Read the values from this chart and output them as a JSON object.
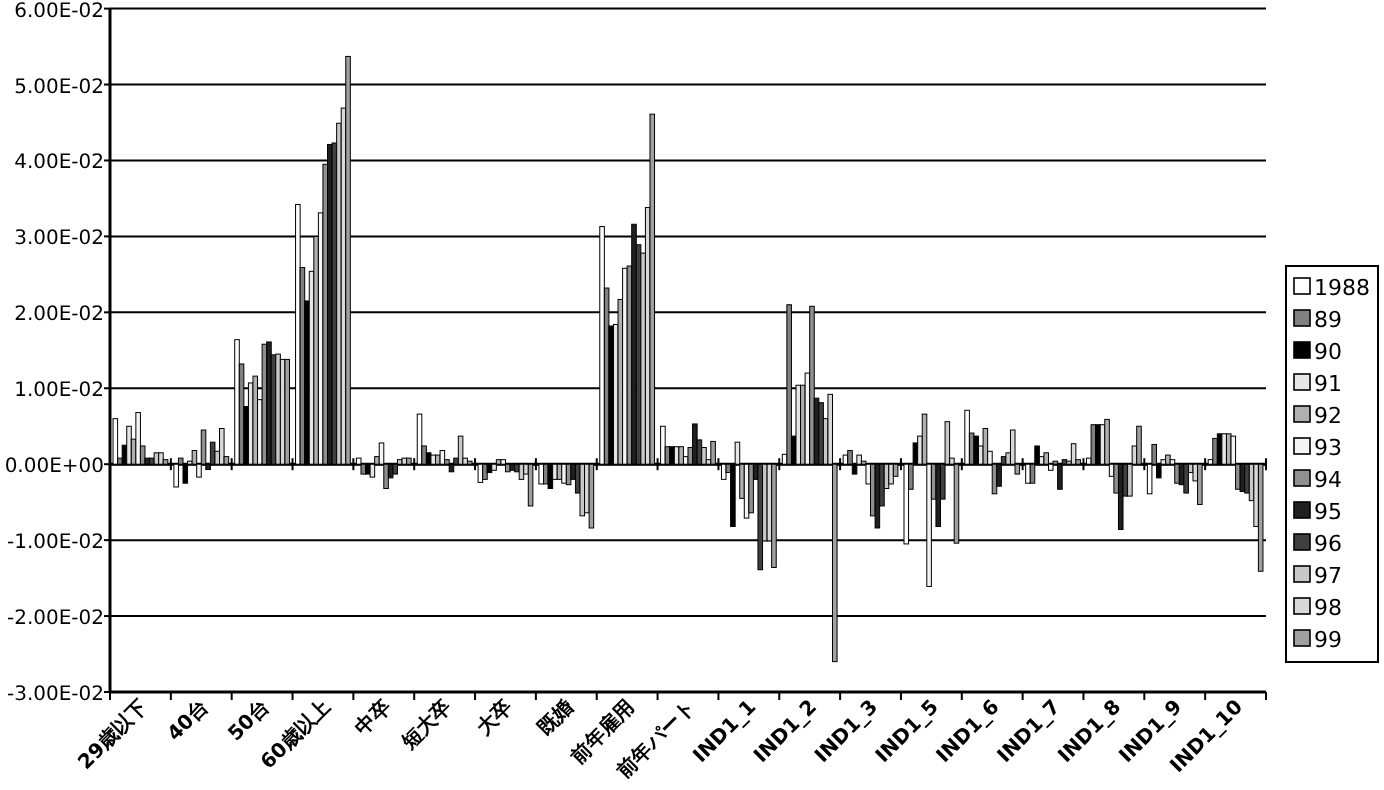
{
  "chart_data": {
    "type": "bar",
    "categories": [
      "29歳以下",
      "40台",
      "50台",
      "60歳以上",
      "中卒",
      "短大卒",
      "大卒",
      "既婚",
      "前年雇用",
      "前年パート",
      "IND1_1",
      "IND1_2",
      "IND1_3",
      "IND1_5",
      "IND1_6",
      "IND1_7",
      "IND1_8",
      "IND1_9",
      "IND1_10"
    ],
    "series": [
      {
        "name": "1988",
        "color": "#ffffff",
        "values": [
          0.006,
          -0.003,
          0.0164,
          0.0342,
          0.0008,
          0.0066,
          -0.0024,
          -0.0026,
          0.0313,
          0.005,
          -0.002,
          0.0013,
          0.0012,
          -0.0105,
          0.0071,
          -0.0025,
          0.0008,
          -0.0039,
          0.0006
        ]
      },
      {
        "name": "89",
        "color": "#808080",
        "values": [
          0.0008,
          0.0008,
          0.0132,
          0.0259,
          -0.0013,
          0.0024,
          -0.002,
          -0.0026,
          0.0232,
          0.0023,
          -0.0011,
          0.021,
          0.0018,
          -0.0033,
          0.0041,
          -0.0025,
          0.0052,
          0.0026,
          0.0034
        ]
      },
      {
        "name": "90",
        "color": "#000000",
        "values": [
          0.0025,
          -0.0025,
          0.0076,
          0.0215,
          -0.0013,
          0.0015,
          -0.0011,
          -0.0032,
          0.0182,
          0.0023,
          -0.0082,
          0.0037,
          -0.0013,
          0.0028,
          0.0037,
          0.0024,
          0.0052,
          -0.0018,
          0.004
        ]
      },
      {
        "name": "91",
        "color": "#e6e6e6",
        "values": [
          0.005,
          0.0004,
          0.0107,
          0.0254,
          -0.0017,
          0.0012,
          -0.0008,
          -0.002,
          0.0184,
          0.0023,
          0.0029,
          0.0104,
          0.0012,
          0.0037,
          0.0024,
          0.001,
          0.0052,
          0.0006,
          0.004
        ]
      },
      {
        "name": "92",
        "color": "#b0b0b0",
        "values": [
          0.0033,
          0.0018,
          0.0116,
          0.03,
          0.001,
          0.0012,
          0.0006,
          -0.002,
          0.0217,
          0.0023,
          -0.0045,
          0.0104,
          0.0004,
          0.0066,
          0.0047,
          0.0015,
          0.0059,
          0.0012,
          0.004
        ]
      },
      {
        "name": "93",
        "color": "#f4f4f4",
        "values": [
          0.0068,
          -0.0017,
          0.0085,
          0.0331,
          0.0028,
          0.0018,
          0.0006,
          -0.0025,
          0.0258,
          0.001,
          -0.0071,
          0.012,
          -0.0026,
          -0.0161,
          0.0017,
          -0.0008,
          -0.0016,
          0.0006,
          0.0037
        ]
      },
      {
        "name": "94",
        "color": "#909090",
        "values": [
          0.0024,
          0.0045,
          0.0158,
          0.0395,
          -0.0032,
          0.0006,
          -0.001,
          -0.0027,
          0.0261,
          0.0022,
          -0.0064,
          0.0208,
          -0.0068,
          -0.0046,
          -0.0039,
          0.0004,
          -0.0038,
          -0.0025,
          -0.0033
        ]
      },
      {
        "name": "95",
        "color": "#202020",
        "values": [
          0.0008,
          -0.0007,
          0.0161,
          0.0421,
          -0.0018,
          -0.001,
          -0.0008,
          -0.002,
          0.0316,
          0.0053,
          -0.002,
          0.0087,
          -0.0084,
          -0.0082,
          -0.0029,
          -0.0033,
          -0.0086,
          -0.0027,
          -0.0036
        ]
      },
      {
        "name": "96",
        "color": "#404040",
        "values": [
          0.0008,
          0.0029,
          0.0144,
          0.0423,
          -0.0013,
          0.0008,
          -0.001,
          -0.0038,
          0.0289,
          0.0032,
          -0.0139,
          0.0081,
          -0.0055,
          -0.0046,
          0.001,
          0.0006,
          -0.0042,
          -0.0038,
          -0.0038
        ]
      },
      {
        "name": "97",
        "color": "#c8c8c8",
        "values": [
          0.0015,
          0.0017,
          0.0145,
          0.0449,
          0.0006,
          0.0037,
          -0.002,
          -0.0068,
          0.0278,
          0.0022,
          -0.0101,
          0.006,
          -0.0032,
          0.0056,
          0.0015,
          0.0004,
          -0.0042,
          -0.0011,
          -0.0048
        ]
      },
      {
        "name": "98",
        "color": "#d8d8d8",
        "values": [
          0.0015,
          0.0047,
          0.0138,
          0.0469,
          0.0008,
          0.0008,
          -0.0013,
          -0.0064,
          0.0338,
          0.0006,
          -0.0101,
          0.0092,
          -0.0026,
          0.0008,
          0.0045,
          0.0027,
          0.0024,
          -0.0022,
          -0.0082
        ]
      },
      {
        "name": "99",
        "color": "#a0a0a0",
        "values": [
          0.0006,
          0.001,
          0.0138,
          0.0537,
          0.0008,
          0.0004,
          -0.0055,
          -0.0084,
          0.0461,
          0.003,
          -0.0136,
          -0.026,
          -0.0016,
          -0.0104,
          -0.0013,
          0.0006,
          0.005,
          -0.0053,
          -0.0141
        ]
      }
    ],
    "ylim": [
      -0.03,
      0.06
    ],
    "yticks": [
      {
        "value": -0.03,
        "label": "-3.00E-02"
      },
      {
        "value": -0.02,
        "label": "-2.00E-02"
      },
      {
        "value": -0.01,
        "label": "-1.00E-02"
      },
      {
        "value": 0,
        "label": "0.00E+00"
      },
      {
        "value": 0.01,
        "label": "1.00E-02"
      },
      {
        "value": 0.02,
        "label": "2.00E-02"
      },
      {
        "value": 0.03,
        "label": "3.00E-02"
      },
      {
        "value": 0.04,
        "label": "4.00E-02"
      },
      {
        "value": 0.05,
        "label": "5.00E-02"
      },
      {
        "value": 0.06,
        "label": "6.00E-02"
      }
    ],
    "grid": "y",
    "legend": "right"
  }
}
